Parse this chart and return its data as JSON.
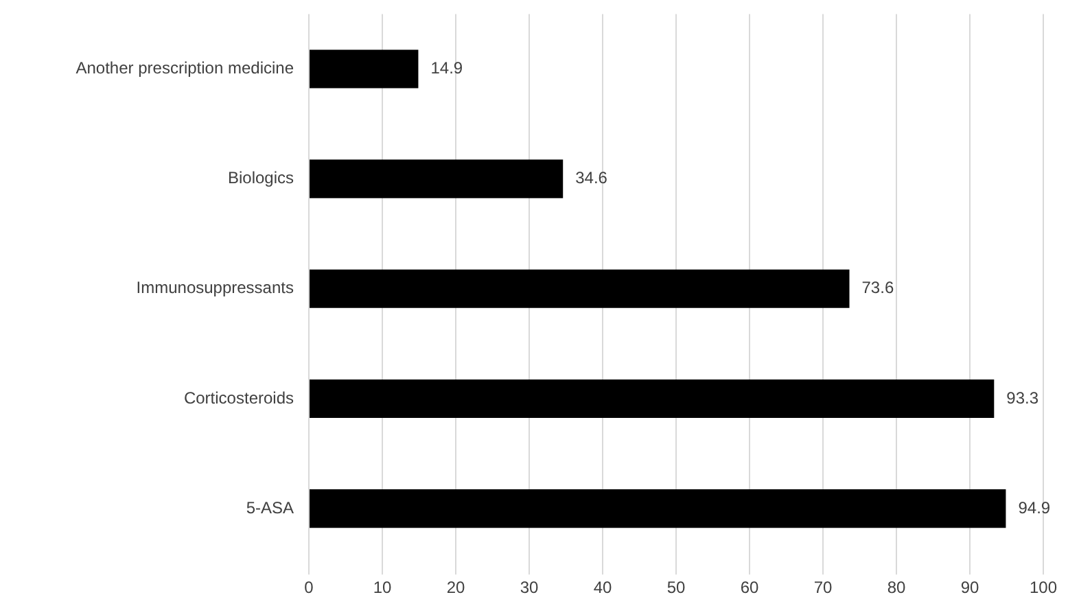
{
  "chart_data": {
    "type": "bar",
    "orientation": "horizontal",
    "categories": [
      "Another prescription medicine",
      "Biologics",
      "Immunosuppressants",
      "Corticosteroids",
      "5-ASA"
    ],
    "values": [
      14.9,
      34.6,
      73.6,
      93.3,
      94.9
    ],
    "color": "#000000",
    "xlim": [
      0,
      100
    ],
    "xticks": [
      0,
      10,
      20,
      30,
      40,
      50,
      60,
      70,
      80,
      90,
      100
    ],
    "grid": "x",
    "data_labels": true,
    "legend": false
  }
}
